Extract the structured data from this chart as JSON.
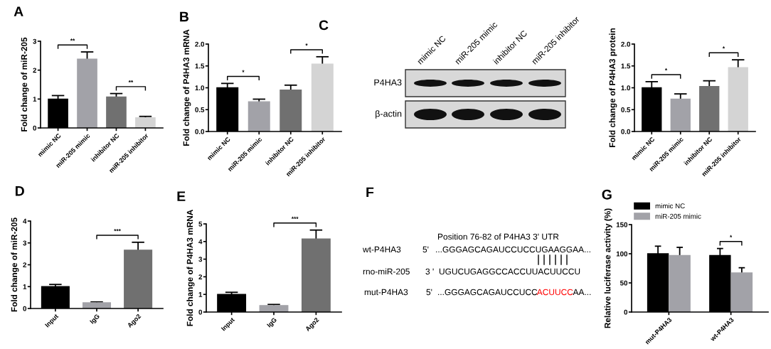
{
  "chart_data": [
    {
      "type": "bar",
      "title": "A",
      "ylabel": "Fold change of miR-205",
      "categories": [
        "mimic NC",
        "miR-205 mimic",
        "inhibitor NC",
        "miR-205 inhibitor"
      ],
      "values": [
        1.0,
        2.38,
        1.07,
        0.35
      ],
      "errors": [
        0.12,
        0.25,
        0.12,
        0.05
      ],
      "colors": [
        "#000000",
        "#a2a2a8",
        "#707070",
        "#d4d4d4"
      ],
      "ylim": [
        0,
        3
      ],
      "yticks": [
        0,
        1,
        2,
        3
      ],
      "annotations": [
        "**",
        "**"
      ]
    },
    {
      "type": "bar",
      "title": "B",
      "ylabel": "Fold change of P4HA3 mRNA",
      "categories": [
        "mimic NC",
        "miR-205 mimic",
        "inhibitor NC",
        "miR-205 inhibitor"
      ],
      "values": [
        1.0,
        0.68,
        0.95,
        1.54
      ],
      "errors": [
        0.1,
        0.06,
        0.11,
        0.17
      ],
      "colors": [
        "#000000",
        "#a2a2a8",
        "#707070",
        "#d4d4d4"
      ],
      "ylim": [
        0,
        2
      ],
      "yticks": [
        {
          "value": 0,
          "label": "0.0"
        },
        {
          "value": 0.5,
          "label": "0.5"
        },
        {
          "value": 1,
          "label": "1.0"
        },
        {
          "value": 1.5,
          "label": "1.5"
        },
        {
          "value": 2,
          "label": "2.0"
        }
      ],
      "annotations": [
        "*",
        "*"
      ]
    },
    {
      "type": "other",
      "title": "C",
      "categories": [
        "mimic NC",
        "miR-205 mimic",
        "inhibitor NC",
        "miR-205 inhibitor"
      ],
      "y_categories": [
        "P4HA3",
        "β-actin"
      ]
    },
    {
      "type": "bar",
      "ylabel": "Fold change of P4HA3 protein",
      "categories": [
        "mimic NC",
        "miR-205 mimic",
        "inhibitor NC",
        "miR-205 inhibitor"
      ],
      "values": [
        1.0,
        0.74,
        1.03,
        1.46
      ],
      "errors": [
        0.14,
        0.12,
        0.13,
        0.18
      ],
      "colors": [
        "#000000",
        "#a2a2a8",
        "#707070",
        "#d4d4d4"
      ],
      "ylim": [
        0,
        2
      ],
      "yticks": [
        {
          "value": 0,
          "label": "0.0"
        },
        {
          "value": 0.5,
          "label": "0.5"
        },
        {
          "value": 1,
          "label": "1.0"
        },
        {
          "value": 1.5,
          "label": "1.5"
        },
        {
          "value": 2,
          "label": "2.0"
        }
      ],
      "annotations": [
        "*",
        "*"
      ]
    },
    {
      "type": "bar",
      "title": "D",
      "ylabel": "Fold change of miR-205",
      "categories": [
        "Input",
        "IgG",
        "Ago2"
      ],
      "values": [
        1.0,
        0.26,
        2.67
      ],
      "errors": [
        0.1,
        0.04,
        0.36
      ],
      "colors": [
        "#000000",
        "#a2a2a8",
        "#707070"
      ],
      "ylim": [
        0,
        4
      ],
      "yticks": [
        0,
        1,
        2,
        3,
        4
      ],
      "annotations": [
        "***"
      ]
    },
    {
      "type": "bar",
      "title": "E",
      "ylabel": "Fold change of P4HA3 mRNA",
      "categories": [
        "Input",
        "IgG",
        "Ago2"
      ],
      "values": [
        1.0,
        0.37,
        4.15
      ],
      "errors": [
        0.12,
        0.06,
        0.5
      ],
      "colors": [
        "#000000",
        "#a2a2a8",
        "#707070"
      ],
      "ylim": [
        0,
        5
      ],
      "yticks": [
        0,
        1,
        2,
        3,
        4,
        5
      ],
      "annotations": [
        "***"
      ]
    },
    {
      "type": "other",
      "title": "F",
      "annotations": [
        "Position 76-82 of P4HA3 3' UTR",
        "wt-P4HA3",
        "5'",
        "...GGGAGCAGAUCCUCCUGAAGGAA...",
        "rno-miR-205",
        "3 '",
        "UGUCUGAGGCCACCUUACUUCCU",
        "mut-P4HA3",
        "5'",
        "...GGGAGCAGAUCCUCC",
        "ACUUCC",
        "AA..."
      ],
      "colors": [
        "#000000",
        "#000000",
        "#000000",
        "#000000",
        "#000000",
        "#000000",
        "#000000",
        "#000000",
        "#000000",
        "#000000",
        "#ff0000",
        "#000000"
      ]
    },
    {
      "type": "bar",
      "title": "G",
      "ylabel": "Relative luciferase activity (%)",
      "categories": [
        "mut-P4HA3",
        "wt-P4HA3"
      ],
      "series": [
        {
          "name": "mimic NC",
          "color": "#000000",
          "values": [
            100,
            97
          ],
          "errors": [
            13,
            12
          ]
        },
        {
          "name": "miR-205 mimic",
          "color": "#a2a2a8",
          "values": [
            97,
            67
          ],
          "errors": [
            14,
            9
          ]
        }
      ],
      "ylim": [
        0,
        150
      ],
      "yticks": [
        0,
        50,
        100,
        150
      ],
      "legend": "top left",
      "annotations": [
        "*"
      ]
    }
  ]
}
